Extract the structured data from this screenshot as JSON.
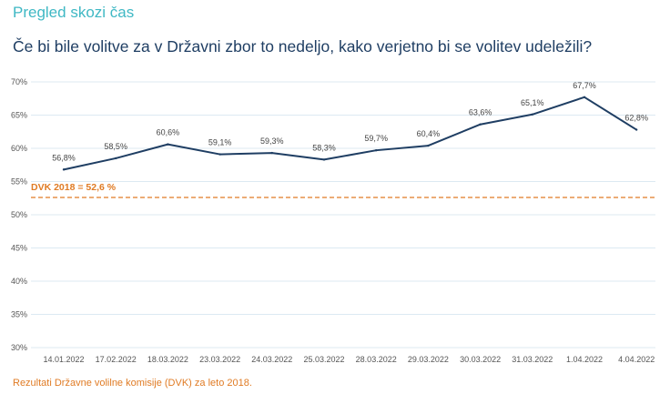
{
  "header": {
    "title": "Pregled skozi čas",
    "question": "Če bi bile volitve za v Državni zbor to nedeljo, kako verjetno bi se volitev udeležili?"
  },
  "footnote": "Rezultati Državne volilne komisije (DVK) za leto 2018.",
  "colors": {
    "line": "#1f3e63",
    "reference": "#e07b24",
    "grid": "#dce9f2",
    "title_accent": "#3fb8c4"
  },
  "chart_data": {
    "type": "line",
    "categories": [
      "14.01.2022",
      "17.02.2022",
      "18.03.2022",
      "23.03.2022",
      "24.03.2022",
      "25.03.2022",
      "28.03.2022",
      "29.03.2022",
      "30.03.2022",
      "31.03.2022",
      "1.04.2022",
      "4.04.2022"
    ],
    "series": [
      {
        "values": [
          56.8,
          58.5,
          60.6,
          59.1,
          59.3,
          58.3,
          59.7,
          60.4,
          63.6,
          65.1,
          67.7,
          62.8
        ],
        "labels": [
          "56,8%",
          "58,5%",
          "60,6%",
          "59,1%",
          "59,3%",
          "58,3%",
          "59,7%",
          "60,4%",
          "63,6%",
          "65,1%",
          "67,7%",
          "62,8%"
        ]
      }
    ],
    "reference_line": {
      "label": "DVK 2018 = 52,6 %",
      "value": 52.6
    },
    "ylim": [
      30,
      70
    ],
    "y_ticks": [
      30,
      35,
      40,
      45,
      50,
      55,
      60,
      65,
      70
    ],
    "y_tick_labels": [
      "30%",
      "35%",
      "40%",
      "45%",
      "50%",
      "55%",
      "60%",
      "65%",
      "70%"
    ],
    "grid": true,
    "title": "",
    "xlabel": "",
    "ylabel": ""
  }
}
